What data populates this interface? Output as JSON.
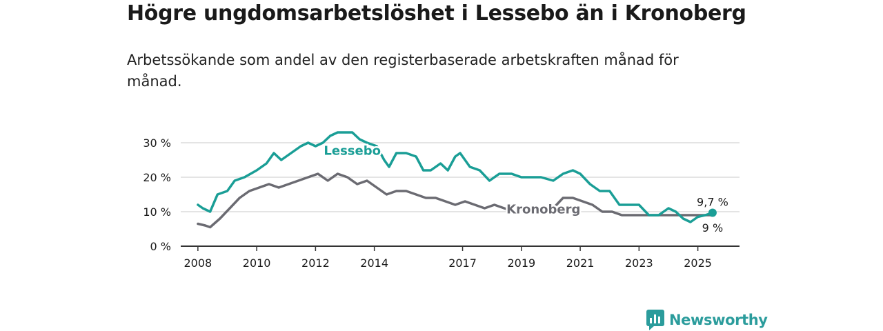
{
  "title": "Högre ungdomsarbetslöshet i Lessebo än i Kronoberg",
  "subtitle": "Arbetssökande som andel av den registerbaserade arbetskraften månad för månad.",
  "brand": "Newsworthy",
  "colors": {
    "lessebo": "#1a9e96",
    "kronoberg": "#6b6b72",
    "grid": "#dcdcdc",
    "axis": "#333333",
    "brand": "#2b9c9c"
  },
  "chart_data": {
    "type": "line",
    "x_ticks": [
      "2008",
      "2010",
      "2012",
      "2014",
      "2017",
      "2019",
      "2021",
      "2023",
      "2025"
    ],
    "y_ticks": [
      "0 %",
      "10 %",
      "20 %",
      "30 %"
    ],
    "ylim": [
      0,
      35
    ],
    "xlim": [
      "2007-06",
      "2026-06"
    ],
    "grid": true,
    "series": [
      {
        "name": "Lessebo",
        "end_label": "9,7 %",
        "points": [
          [
            "2008-01",
            12
          ],
          [
            "2008-03",
            11
          ],
          [
            "2008-06",
            10
          ],
          [
            "2008-09",
            15
          ],
          [
            "2009-01",
            16
          ],
          [
            "2009-04",
            19
          ],
          [
            "2009-08",
            20
          ],
          [
            "2010-01",
            22
          ],
          [
            "2010-05",
            24
          ],
          [
            "2010-08",
            27
          ],
          [
            "2010-11",
            25
          ],
          [
            "2011-03",
            27
          ],
          [
            "2011-07",
            29
          ],
          [
            "2011-10",
            30
          ],
          [
            "2012-01",
            29
          ],
          [
            "2012-04",
            30
          ],
          [
            "2012-07",
            32
          ],
          [
            "2012-10",
            33
          ],
          [
            "2013-01",
            33
          ],
          [
            "2013-04",
            33
          ],
          [
            "2013-07",
            31
          ],
          [
            "2013-10",
            30
          ],
          [
            "2014-02",
            29
          ],
          [
            "2014-05",
            25
          ],
          [
            "2014-07",
            23
          ],
          [
            "2014-10",
            27
          ],
          [
            "2015-02",
            27
          ],
          [
            "2015-06",
            26
          ],
          [
            "2015-09",
            22
          ],
          [
            "2015-12",
            22
          ],
          [
            "2016-04",
            24
          ],
          [
            "2016-07",
            22
          ],
          [
            "2016-10",
            26
          ],
          [
            "2016-12",
            27
          ],
          [
            "2017-04",
            23
          ],
          [
            "2017-08",
            22
          ],
          [
            "2017-12",
            19
          ],
          [
            "2018-04",
            21
          ],
          [
            "2018-09",
            21
          ],
          [
            "2019-01",
            20
          ],
          [
            "2019-05",
            20
          ],
          [
            "2019-09",
            20
          ],
          [
            "2020-02",
            19
          ],
          [
            "2020-06",
            21
          ],
          [
            "2020-10",
            22
          ],
          [
            "2021-01",
            21
          ],
          [
            "2021-05",
            18
          ],
          [
            "2021-09",
            16
          ],
          [
            "2022-01",
            16
          ],
          [
            "2022-05",
            12
          ],
          [
            "2022-09",
            12
          ],
          [
            "2023-01",
            12
          ],
          [
            "2023-05",
            9
          ],
          [
            "2023-09",
            9
          ],
          [
            "2024-01",
            11
          ],
          [
            "2024-04",
            10
          ],
          [
            "2024-07",
            8
          ],
          [
            "2024-10",
            7
          ],
          [
            "2025-01",
            8.5
          ],
          [
            "2025-04",
            9
          ],
          [
            "2025-07",
            9.7
          ]
        ]
      },
      {
        "name": "Kronoberg",
        "end_label": "9 %",
        "points": [
          [
            "2008-01",
            6.5
          ],
          [
            "2008-04",
            6
          ],
          [
            "2008-06",
            5.5
          ],
          [
            "2008-10",
            8
          ],
          [
            "2009-02",
            11
          ],
          [
            "2009-06",
            14
          ],
          [
            "2009-10",
            16
          ],
          [
            "2010-02",
            17
          ],
          [
            "2010-06",
            18
          ],
          [
            "2010-10",
            17
          ],
          [
            "2011-02",
            18
          ],
          [
            "2011-06",
            19
          ],
          [
            "2011-10",
            20
          ],
          [
            "2012-02",
            21
          ],
          [
            "2012-06",
            19
          ],
          [
            "2012-10",
            21
          ],
          [
            "2013-02",
            20
          ],
          [
            "2013-06",
            18
          ],
          [
            "2013-10",
            19
          ],
          [
            "2014-02",
            17
          ],
          [
            "2014-06",
            15
          ],
          [
            "2014-10",
            16
          ],
          [
            "2015-02",
            16
          ],
          [
            "2015-06",
            15
          ],
          [
            "2015-10",
            14
          ],
          [
            "2016-02",
            14
          ],
          [
            "2016-06",
            13
          ],
          [
            "2016-10",
            12
          ],
          [
            "2017-02",
            13
          ],
          [
            "2017-06",
            12
          ],
          [
            "2017-10",
            11
          ],
          [
            "2018-02",
            12
          ],
          [
            "2018-06",
            11
          ],
          [
            "2018-10",
            10
          ],
          [
            "2019-02",
            11
          ],
          [
            "2019-06",
            11
          ],
          [
            "2019-10",
            11
          ],
          [
            "2020-02",
            11
          ],
          [
            "2020-06",
            14
          ],
          [
            "2020-10",
            14
          ],
          [
            "2021-02",
            13
          ],
          [
            "2021-06",
            12
          ],
          [
            "2021-10",
            10
          ],
          [
            "2022-02",
            10
          ],
          [
            "2022-06",
            9
          ],
          [
            "2022-10",
            9
          ],
          [
            "2023-02",
            9
          ],
          [
            "2023-06",
            9
          ],
          [
            "2023-10",
            9
          ],
          [
            "2024-02",
            9
          ],
          [
            "2024-06",
            9
          ],
          [
            "2024-10",
            9
          ],
          [
            "2025-02",
            9
          ],
          [
            "2025-07",
            9
          ]
        ]
      }
    ]
  }
}
